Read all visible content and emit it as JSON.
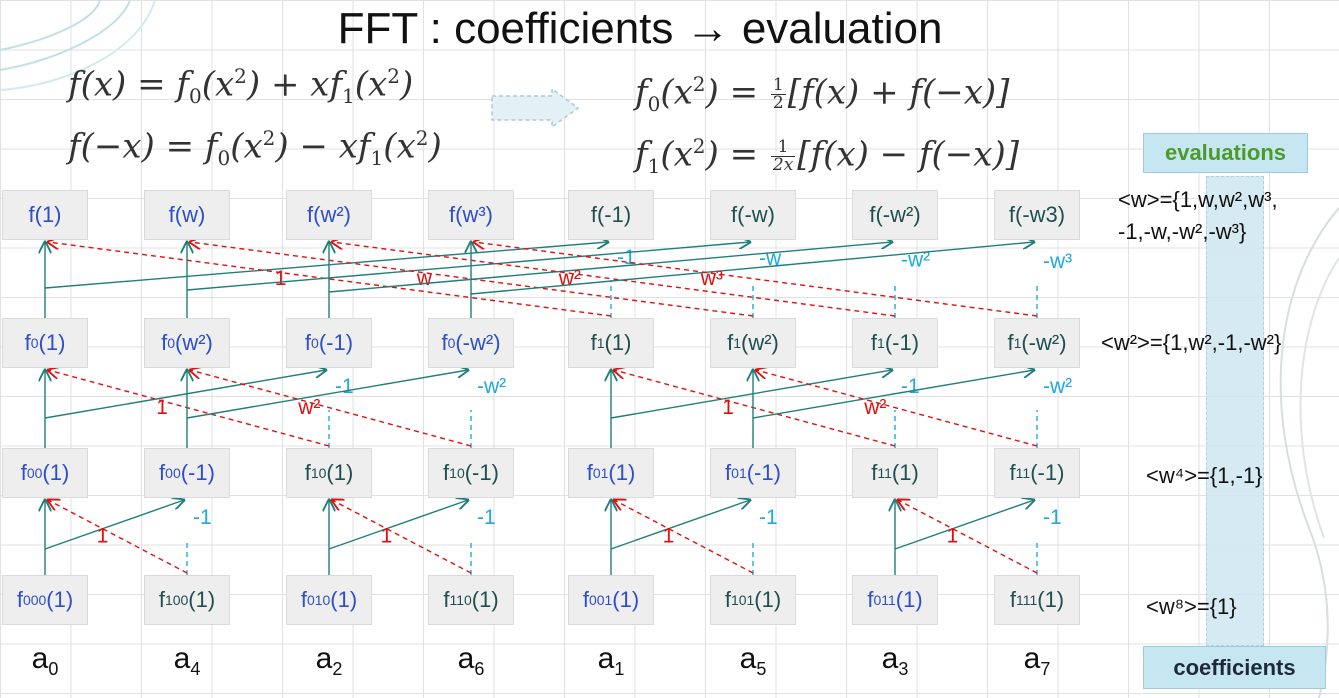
{
  "title": "FFT : coefficients → evaluation",
  "colors": {
    "twiddle_red": "#e01010",
    "twiddle_blue": "#1eaadc",
    "wire_teal": "#1f7f7a",
    "node_blue_text": "#2f4fc8",
    "node_teal_text": "#1f4f4f",
    "box_fill": "#c6e6f1",
    "evaluations_text": "#4c9a2a"
  },
  "sidebar": {
    "evaluations_label": "evaluations",
    "coefficients_label": "coefficients",
    "group_w_line1": "<w>={1,w,w²,w³,",
    "group_w_line2": "-1,-w,-w²,-w³}",
    "group_w2": "<w²>={1,w²,-1,-w²}",
    "group_w4": "<w⁴>={1,-1}",
    "group_w8": "<w⁸>={1}"
  },
  "coefficients": [
    "a0",
    "a4",
    "a2",
    "a6",
    "a1",
    "a5",
    "a3",
    "a7"
  ],
  "levels": {
    "top": [
      "f(1)",
      "f(w)",
      "f(w²)",
      "f(w³)",
      "f(-1)",
      "f(-w)",
      "f(-w²)",
      "f(-w3)"
    ],
    "second": [
      "f0(1)",
      "f0(w²)",
      "f0(-1)",
      "f0(-w²)",
      "f1(1)",
      "f1(w²)",
      "f1(-1)",
      "f1(-w²)"
    ],
    "third": [
      "f00(1)",
      "f00(-1)",
      "f10(1)",
      "f10(-1)",
      "f01(1)",
      "f01(-1)",
      "f11(1)",
      "f11(-1)"
    ],
    "bottom": [
      "f000(1)",
      "f100(1)",
      "f010(1)",
      "f110(1)",
      "f001(1)",
      "f101(1)",
      "f011(1)",
      "f111(1)"
    ]
  },
  "twiddles": {
    "stage1_red": [
      "1",
      "w",
      "w²",
      "w³"
    ],
    "stage1_blue": [
      "-1",
      "-w",
      "-w²",
      "-w³"
    ],
    "stage2_red": [
      "1",
      "w²",
      "1",
      "w²"
    ],
    "stage2_blue": [
      "-1",
      "-w²",
      "-1",
      "-w²"
    ],
    "stage3_red": [
      "1",
      "1",
      "1",
      "1"
    ],
    "stage3_blue": [
      "-1",
      "-1",
      "-1",
      "-1"
    ]
  }
}
